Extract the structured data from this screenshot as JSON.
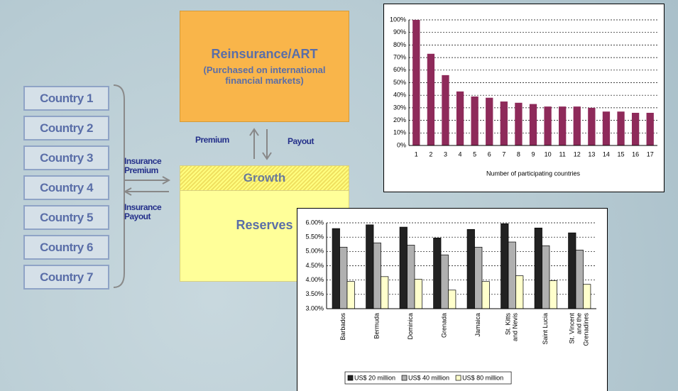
{
  "diagram": {
    "countries": [
      "Country 1",
      "Country 2",
      "Country 3",
      "Country 4",
      "Country 5",
      "Country 6",
      "Country 7"
    ],
    "reinsurance": {
      "title": "Reinsurance/ART",
      "subtitle": "(Purchased on international financial markets)"
    },
    "premium": "Premium",
    "payout": "Payout",
    "insurance_premium": "Insurance Premium",
    "insurance_payout": "Insurance Payout",
    "growth": "Growth",
    "reserves": "Reserves"
  },
  "chart_data": [
    {
      "type": "bar",
      "color": "#8e2a5a",
      "grid": true,
      "x_label": "Number of participating countries",
      "categories": [
        "1",
        "2",
        "3",
        "4",
        "5",
        "6",
        "7",
        "8",
        "9",
        "10",
        "11",
        "12",
        "13",
        "14",
        "15",
        "16",
        "17"
      ],
      "values": [
        100,
        73,
        56,
        43,
        39,
        38,
        35,
        34,
        33,
        31,
        31,
        31,
        30,
        27,
        27,
        26,
        26
      ],
      "ylim": [
        0,
        100
      ],
      "yticks": [
        {
          "value": 0,
          "label": "0%"
        },
        {
          "value": 10,
          "label": "10%"
        },
        {
          "value": 20,
          "label": "20%"
        },
        {
          "value": 30,
          "label": "30%"
        },
        {
          "value": 40,
          "label": "40%"
        },
        {
          "value": 50,
          "label": "50%"
        },
        {
          "value": 60,
          "label": "60%"
        },
        {
          "value": 70,
          "label": "70%"
        },
        {
          "value": 80,
          "label": "80%"
        },
        {
          "value": 90,
          "label": "90%"
        },
        {
          "value": 100,
          "label": "100%"
        }
      ]
    },
    {
      "type": "grouped_bar",
      "grid": true,
      "legend": "bottom",
      "categories": [
        "Barbados",
        "Bermuda",
        "Dominica",
        "Grenada",
        "Jamaica",
        "St. Kitts and Nevis",
        "Saint Lucia",
        "St. Vincent and the Grenadines"
      ],
      "series": [
        {
          "name": "US$ 20 million",
          "color": "#222222",
          "values": [
            5.8,
            5.93,
            5.85,
            5.47,
            5.77,
            5.97,
            5.82,
            5.65
          ]
        },
        {
          "name": "US$ 40 million",
          "color": "#b0b0b0",
          "values": [
            5.15,
            5.3,
            5.22,
            4.88,
            5.15,
            5.33,
            5.2,
            5.05
          ]
        },
        {
          "name": "US$ 80 million",
          "color": "#ffffcc",
          "values": [
            3.95,
            4.12,
            4.03,
            3.65,
            3.95,
            4.15,
            3.98,
            3.85
          ]
        }
      ],
      "ylim": [
        3,
        6
      ],
      "yticks": [
        {
          "value": 3,
          "label": "3.00%"
        },
        {
          "value": 3.5,
          "label": "3.50%"
        },
        {
          "value": 4,
          "label": "4.00%"
        },
        {
          "value": 4.5,
          "label": "4.50%"
        },
        {
          "value": 5,
          "label": "5.00%"
        },
        {
          "value": 5.5,
          "label": "5.50%"
        },
        {
          "value": 6,
          "label": "6.00%"
        }
      ]
    }
  ]
}
